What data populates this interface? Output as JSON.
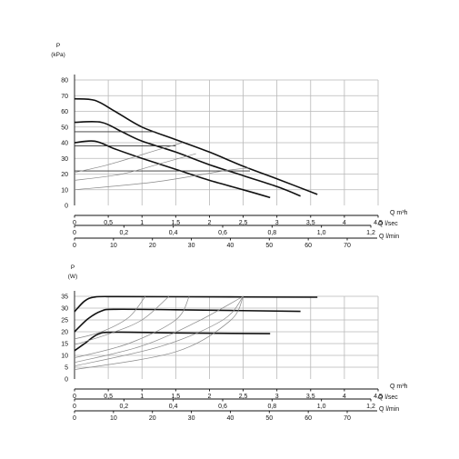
{
  "chart_data": [
    {
      "type": "line",
      "ylabel": "P",
      "yunit": "(kPa)",
      "ylim": [
        0,
        85
      ],
      "yticks": [
        0,
        10,
        20,
        30,
        40,
        50,
        60,
        70,
        80
      ],
      "xlim": [
        0,
        4.5
      ],
      "x_axes": [
        {
          "label": "Q m³h",
          "ticks": [
            {
              "v": 0,
              "t": "0"
            },
            {
              "v": 0.5,
              "t": "0,5"
            },
            {
              "v": 1,
              "t": "1"
            },
            {
              "v": 1.5,
              "t": "1,5"
            },
            {
              "v": 2,
              "t": "2"
            },
            {
              "v": 2.5,
              "t": "2,5"
            },
            {
              "v": 3,
              "t": "3"
            },
            {
              "v": 3.5,
              "t": "3,5"
            },
            {
              "v": 4,
              "t": "4"
            },
            {
              "v": 4.5,
              "t": "4,5"
            }
          ]
        },
        {
          "label": "Q l/sec",
          "ticks": [
            {
              "v": 0,
              "t": "0"
            },
            {
              "v": 0.2,
              "t": "0,2"
            },
            {
              "v": 0.4,
              "t": "0,4"
            },
            {
              "v": 0.6,
              "t": "0,6"
            },
            {
              "v": 0.8,
              "t": "0,8"
            },
            {
              "v": 1.0,
              "t": "1,0"
            },
            {
              "v": 1.2,
              "t": "1,2"
            }
          ]
        },
        {
          "label": "Q l/min",
          "ticks": [
            {
              "v": 0,
              "t": "0"
            },
            {
              "v": 10,
              "t": "10"
            },
            {
              "v": 20,
              "t": "20"
            },
            {
              "v": 30,
              "t": "30"
            },
            {
              "v": 40,
              "t": "40"
            },
            {
              "v": 50,
              "t": "50"
            },
            {
              "v": 60,
              "t": "60"
            },
            {
              "v": 70,
              "t": "70"
            }
          ]
        }
      ],
      "series": [
        {
          "points": [
            [
              0,
              68
            ],
            [
              0.3,
              67
            ],
            [
              0.6,
              60
            ],
            [
              1.0,
              50
            ],
            [
              1.5,
              42
            ],
            [
              2.0,
              34
            ],
            [
              2.5,
              25
            ],
            [
              3.0,
              17
            ],
            [
              3.6,
              7
            ]
          ]
        },
        {
          "points": [
            [
              0,
              53
            ],
            [
              0.4,
              53
            ],
            [
              0.7,
              47
            ],
            [
              1.0,
              41
            ],
            [
              1.5,
              34
            ],
            [
              2.0,
              26
            ],
            [
              2.5,
              19
            ],
            [
              3.0,
              12
            ],
            [
              3.35,
              6
            ]
          ]
        },
        {
          "points": [
            [
              0,
              40
            ],
            [
              0.3,
              41
            ],
            [
              0.6,
              36
            ],
            [
              1.0,
              30
            ],
            [
              1.5,
              23
            ],
            [
              2.0,
              16
            ],
            [
              2.5,
              10
            ],
            [
              2.9,
              5
            ]
          ]
        },
        {
          "points": [
            [
              0,
              47
            ],
            [
              1.2,
              47
            ]
          ]
        },
        {
          "points": [
            [
              0,
              38
            ],
            [
              1.5,
              38
            ]
          ]
        },
        {
          "points": [
            [
              0,
              22
            ],
            [
              2.6,
              22
            ]
          ]
        },
        {
          "points": [
            [
              0,
              10
            ],
            [
              1.2,
              15
            ],
            [
              2.2,
              22
            ],
            [
              2.6,
              24
            ]
          ]
        },
        {
          "points": [
            [
              0,
              16
            ],
            [
              0.7,
              20
            ],
            [
              1.3,
              27
            ],
            [
              1.8,
              33
            ]
          ]
        },
        {
          "points": [
            [
              0,
              21
            ],
            [
              0.5,
              26
            ],
            [
              1.2,
              35
            ],
            [
              1.6,
              40
            ]
          ]
        }
      ]
    },
    {
      "type": "line",
      "ylabel": "P",
      "yunit": "(W)",
      "ylim": [
        0,
        37
      ],
      "yticks": [
        0,
        5,
        10,
        15,
        20,
        25,
        30,
        35
      ],
      "xlim": [
        0,
        4.5
      ],
      "x_axes": [
        {
          "label": "Q m³h",
          "ticks": [
            {
              "v": 0,
              "t": "0"
            },
            {
              "v": 0.5,
              "t": "0,5"
            },
            {
              "v": 1,
              "t": "1"
            },
            {
              "v": 1.5,
              "t": "1,5"
            },
            {
              "v": 2,
              "t": "2"
            },
            {
              "v": 2.5,
              "t": "2,5"
            },
            {
              "v": 3,
              "t": "3"
            },
            {
              "v": 3.5,
              "t": "3,5"
            },
            {
              "v": 4,
              "t": "4"
            },
            {
              "v": 4.5,
              "t": "4,5"
            }
          ]
        },
        {
          "label": "Q l/sec",
          "ticks": [
            {
              "v": 0,
              "t": "0"
            },
            {
              "v": 0.2,
              "t": "0,2"
            },
            {
              "v": 0.4,
              "t": "0,4"
            },
            {
              "v": 0.6,
              "t": "0,6"
            },
            {
              "v": 0.8,
              "t": "0,8"
            },
            {
              "v": 1.0,
              "t": "1,0"
            },
            {
              "v": 1.2,
              "t": "1,2"
            }
          ]
        },
        {
          "label": "Q l/min",
          "ticks": [
            {
              "v": 0,
              "t": "0"
            },
            {
              "v": 10,
              "t": "10"
            },
            {
              "v": 20,
              "t": "20"
            },
            {
              "v": 30,
              "t": "30"
            },
            {
              "v": 40,
              "t": "40"
            },
            {
              "v": 50,
              "t": "50"
            },
            {
              "v": 60,
              "t": "60"
            },
            {
              "v": 70,
              "t": "70"
            }
          ]
        }
      ],
      "series": [
        {
          "points": [
            [
              0,
              28.5
            ],
            [
              0.15,
              33
            ],
            [
              0.3,
              34.7
            ],
            [
              0.6,
              34.9
            ],
            [
              1.5,
              34.8
            ],
            [
              3.6,
              34.6
            ]
          ]
        },
        {
          "points": [
            [
              0,
              20
            ],
            [
              0.2,
              25.5
            ],
            [
              0.4,
              28.8
            ],
            [
              0.6,
              29.5
            ],
            [
              1.5,
              29.3
            ],
            [
              3.35,
              28.6
            ]
          ]
        },
        {
          "points": [
            [
              0,
              12
            ],
            [
              0.15,
              15
            ],
            [
              0.35,
              19
            ],
            [
              0.6,
              19.8
            ],
            [
              1.5,
              19.5
            ],
            [
              2.9,
              19.2
            ]
          ]
        },
        {
          "points": [
            [
              0,
              17
            ],
            [
              0.4,
              20
            ],
            [
              0.8,
              26
            ],
            [
              1.05,
              35
            ]
          ]
        },
        {
          "points": [
            [
              0,
              14.5
            ],
            [
              0.5,
              19
            ],
            [
              1.0,
              25
            ],
            [
              1.4,
              35
            ]
          ]
        },
        {
          "points": [
            [
              0,
              9
            ],
            [
              0.8,
              15
            ],
            [
              1.5,
              25
            ],
            [
              1.7,
              35
            ]
          ]
        },
        {
          "points": [
            [
              0,
              7
            ],
            [
              1.0,
              14
            ],
            [
              1.8,
              24
            ],
            [
              2.5,
              35
            ]
          ]
        },
        {
          "points": [
            [
              0,
              5.5
            ],
            [
              1.3,
              14
            ],
            [
              2.2,
              25
            ],
            [
              2.5,
              35
            ]
          ]
        },
        {
          "points": [
            [
              0,
              4
            ],
            [
              1.5,
              11.5
            ],
            [
              2.3,
              24.5
            ],
            [
              2.5,
              35
            ]
          ]
        }
      ]
    }
  ]
}
